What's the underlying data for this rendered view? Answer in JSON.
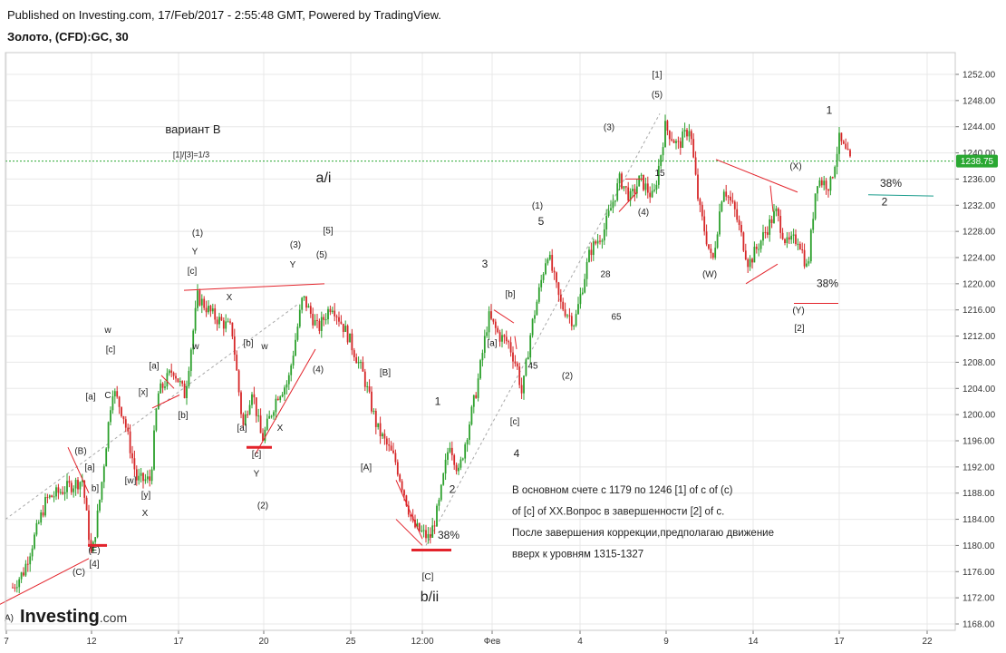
{
  "header": {
    "published": "Published on Investing.com, 17/Feb/2017 - 2:55:48 GMT, Powered by TradingView.",
    "symbol": "Золото, (CFD):GC, 30"
  },
  "logo": {
    "brand": "Investing",
    "suffix": ".com"
  },
  "colors": {
    "up": "#2ca02c",
    "down": "#d62728",
    "annot_red": "#e3232b",
    "price_line": "#2aa832",
    "price_badge": "#2aa832",
    "fib_teal": "#1a9c8c",
    "grid": "#e8e8e8",
    "dashed_guide": "#a8a8a8"
  },
  "chart_data": {
    "type": "candlestick",
    "title": "Золото, (CFD):GC, 30",
    "x_tick_labels": [
      "7",
      "12",
      "17",
      "20",
      "25",
      "12:00",
      "Фев",
      "4",
      "9",
      "14",
      "17",
      "22"
    ],
    "y_axis": {
      "min": 1166,
      "max": 1254,
      "step": 4,
      "tick_labels": [
        "1252.00",
        "1248.00",
        "1244.00",
        "1240.00",
        "1236.00",
        "1232.00",
        "1228.00",
        "1224.00",
        "1220.00",
        "1216.00",
        "1212.00",
        "1208.00",
        "1204.00",
        "1200.00",
        "1196.00",
        "1192.00",
        "1188.00",
        "1184.00",
        "1180.00",
        "1176.00",
        "1172.00",
        "1168.00"
      ]
    },
    "last_price": "1238.75",
    "grid": true,
    "price_path": [
      [
        0,
        1172
      ],
      [
        20,
        1176
      ],
      [
        45,
        1187
      ],
      [
        70,
        1189
      ],
      [
        85,
        1190
      ],
      [
        95,
        1178
      ],
      [
        105,
        1188
      ],
      [
        118,
        1204
      ],
      [
        130,
        1200
      ],
      [
        145,
        1190
      ],
      [
        160,
        1190
      ],
      [
        168,
        1203
      ],
      [
        185,
        1207
      ],
      [
        198,
        1203
      ],
      [
        212,
        1218
      ],
      [
        230,
        1215
      ],
      [
        250,
        1213
      ],
      [
        262,
        1198
      ],
      [
        272,
        1204
      ],
      [
        283,
        1196
      ],
      [
        300,
        1203
      ],
      [
        312,
        1205
      ],
      [
        328,
        1218
      ],
      [
        345,
        1213
      ],
      [
        360,
        1217
      ],
      [
        378,
        1212
      ],
      [
        395,
        1206
      ],
      [
        410,
        1198
      ],
      [
        430,
        1193
      ],
      [
        450,
        1183
      ],
      [
        468,
        1181
      ],
      [
        478,
        1186
      ],
      [
        490,
        1196
      ],
      [
        500,
        1191
      ],
      [
        520,
        1204
      ],
      [
        533,
        1215
      ],
      [
        545,
        1212
      ],
      [
        555,
        1211
      ],
      [
        565,
        1207
      ],
      [
        570,
        1203
      ],
      [
        580,
        1213
      ],
      [
        598,
        1225
      ],
      [
        612,
        1217
      ],
      [
        628,
        1214
      ],
      [
        645,
        1225
      ],
      [
        660,
        1228
      ],
      [
        678,
        1236
      ],
      [
        690,
        1233
      ],
      [
        700,
        1236
      ],
      [
        715,
        1233
      ],
      [
        728,
        1244
      ],
      [
        742,
        1241
      ],
      [
        755,
        1244
      ],
      [
        765,
        1232
      ],
      [
        780,
        1223
      ],
      [
        792,
        1235
      ],
      [
        805,
        1231
      ],
      [
        820,
        1223
      ],
      [
        835,
        1227
      ],
      [
        850,
        1231
      ],
      [
        862,
        1226
      ],
      [
        875,
        1227
      ],
      [
        885,
        1222
      ],
      [
        895,
        1236
      ],
      [
        910,
        1235
      ],
      [
        920,
        1242
      ],
      [
        932,
        1238.75
      ]
    ],
    "wave_labels": [
      {
        "text": "[1]",
        "x": 725,
        "y": 1251.5
      },
      {
        "text": "(5)",
        "x": 725,
        "y": 1248.5
      },
      {
        "text": "1",
        "x": 915,
        "y": 1246
      },
      {
        "text": "(3)",
        "x": 672,
        "y": 1243.5
      },
      {
        "text": "(X)",
        "x": 878,
        "y": 1237.5
      },
      {
        "text": "15",
        "x": 728,
        "y": 1236.5
      },
      {
        "text": "38%",
        "x": 983,
        "y": 1234.8
      },
      {
        "text": "2",
        "x": 976,
        "y": 1232
      },
      {
        "text": "(1)",
        "x": 593,
        "y": 1231.5
      },
      {
        "text": "(4)",
        "x": 710,
        "y": 1230.5
      },
      {
        "text": "5",
        "x": 597,
        "y": 1229
      },
      {
        "text": "[5]",
        "x": 362,
        "y": 1227.7
      },
      {
        "text": "(1)",
        "x": 218,
        "y": 1227.3
      },
      {
        "text": "(3)",
        "x": 326,
        "y": 1225.5
      },
      {
        "text": "Y",
        "x": 215,
        "y": 1224.5
      },
      {
        "text": "(5)",
        "x": 355,
        "y": 1224
      },
      {
        "text": "3",
        "x": 535,
        "y": 1222.5
      },
      {
        "text": "Y",
        "x": 323,
        "y": 1222.5
      },
      {
        "text": "[c]",
        "x": 212,
        "y": 1221.5
      },
      {
        "text": "28",
        "x": 668,
        "y": 1221
      },
      {
        "text": "(W)",
        "x": 783,
        "y": 1221
      },
      {
        "text": "38%",
        "x": 913,
        "y": 1219.5
      },
      {
        "text": "[b]",
        "x": 563,
        "y": 1218
      },
      {
        "text": "X",
        "x": 253,
        "y": 1217.5
      },
      {
        "text": "(Y)",
        "x": 881,
        "y": 1215.5
      },
      {
        "text": "65",
        "x": 680,
        "y": 1214.5
      },
      {
        "text": "[2]",
        "x": 882,
        "y": 1212.8
      },
      {
        "text": "w",
        "x": 119,
        "y": 1212.5
      },
      {
        "text": "[a]",
        "x": 543,
        "y": 1210.5
      },
      {
        "text": "[b]",
        "x": 274,
        "y": 1210.5
      },
      {
        "text": "w",
        "x": 216,
        "y": 1210
      },
      {
        "text": "w",
        "x": 292,
        "y": 1210
      },
      {
        "text": "[c]",
        "x": 122,
        "y": 1209.5
      },
      {
        "text": "(4)",
        "x": 351,
        "y": 1206.5
      },
      {
        "text": "[a]",
        "x": 170,
        "y": 1207
      },
      {
        "text": "45",
        "x": 588,
        "y": 1207
      },
      {
        "text": "(2)",
        "x": 626,
        "y": 1205.5
      },
      {
        "text": "[B]",
        "x": 425,
        "y": 1206
      },
      {
        "text": "[x]",
        "x": 158,
        "y": 1203
      },
      {
        "text": "[a]",
        "x": 100,
        "y": 1202.3
      },
      {
        "text": "C",
        "x": 119,
        "y": 1202.5
      },
      {
        "text": "1",
        "x": 483,
        "y": 1201.5
      },
      {
        "text": "[b]",
        "x": 202,
        "y": 1199.5
      },
      {
        "text": "[c]",
        "x": 568,
        "y": 1198.5
      },
      {
        "text": "[a]",
        "x": 267,
        "y": 1197.5
      },
      {
        "text": "X",
        "x": 309,
        "y": 1197.5
      },
      {
        "text": "[c]",
        "x": 283,
        "y": 1193.5
      },
      {
        "text": "(B)",
        "x": 89,
        "y": 1194
      },
      {
        "text": "[a]",
        "x": 99,
        "y": 1191.5
      },
      {
        "text": "4",
        "x": 570,
        "y": 1193.5
      },
      {
        "text": "[A]",
        "x": 404,
        "y": 1191.5
      },
      {
        "text": "Y",
        "x": 283,
        "y": 1190.5
      },
      {
        "text": "[w]",
        "x": 144,
        "y": 1189.5
      },
      {
        "text": "b]",
        "x": 105,
        "y": 1188.3
      },
      {
        "text": "2",
        "x": 499,
        "y": 1188
      },
      {
        "text": "[y]",
        "x": 161,
        "y": 1187.3
      },
      {
        "text": "(2)",
        "x": 290,
        "y": 1185.7
      },
      {
        "text": "X",
        "x": 160,
        "y": 1184.5
      },
      {
        "text": "38%",
        "x": 495,
        "y": 1181
      },
      {
        "text": "(E)",
        "x": 104,
        "y": 1178.8
      },
      {
        "text": "[4]",
        "x": 104,
        "y": 1176.7
      },
      {
        "text": "(C)",
        "x": 87,
        "y": 1175.5
      },
      {
        "text": "[C]",
        "x": 472,
        "y": 1174.8
      },
      {
        "text": "A)",
        "x": 10,
        "y": 1168.5
      }
    ],
    "big_labels": [
      {
        "text": "вариант B",
        "x": 213,
        "y": 1243
      },
      {
        "text": "[1]/[3]=1/3",
        "x": 211,
        "y": 1239.3
      },
      {
        "text": "a/i",
        "x": 357,
        "y": 1235.5
      },
      {
        "text": "b/ii",
        "x": 474,
        "y": 1171.5
      }
    ],
    "note_lines": [
      "В основном счете с 1179 по 1246 [1] of c of (c)",
      "of [c] of XX.Вопрос в завершенности [2] of c.",
      "После завершения коррекции,предполагаю движение",
      "вверх к уровням 1315-1327"
    ]
  }
}
